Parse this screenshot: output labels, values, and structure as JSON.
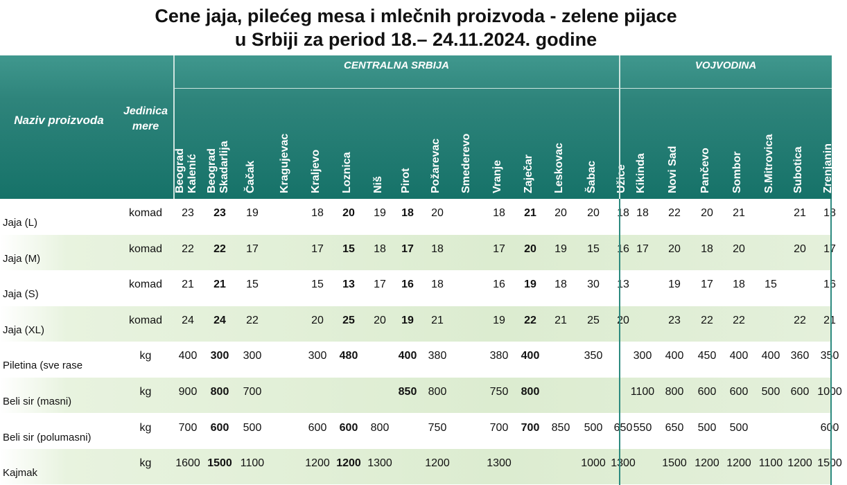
{
  "title_line1": "Cene jaja, pilećeg mesa i mlečnih proizvoda - zelene pijace",
  "title_line2": "u Srbiji za period 18.– 24.11.2024. godine",
  "header": {
    "name": "Naziv proizvoda",
    "unit_line1": "Jedinica",
    "unit_line2": "mere",
    "group_central": "CENTRALNA SRBIJA",
    "group_vojvodina": "VOJVODINA"
  },
  "cities": [
    {
      "lines": [
        "Beograd",
        "Kalenić"
      ]
    },
    {
      "lines": [
        "Beograd",
        "Skadarlija"
      ]
    },
    {
      "lines": [
        "Čačak"
      ]
    },
    {
      "lines": [
        "Kragujevac"
      ]
    },
    {
      "lines": [
        "Kraljevo"
      ]
    },
    {
      "lines": [
        "Loznica"
      ]
    },
    {
      "lines": [
        "Niš"
      ]
    },
    {
      "lines": [
        "Pirot"
      ]
    },
    {
      "lines": [
        "Požarevac"
      ]
    },
    {
      "lines": [
        "Smederevo"
      ]
    },
    {
      "lines": [
        "Vranje"
      ]
    },
    {
      "lines": [
        "Zaječar"
      ]
    },
    {
      "lines": [
        "Leskovac"
      ]
    },
    {
      "lines": [
        "Šabac"
      ]
    },
    {
      "lines": [
        "Užice"
      ]
    },
    {
      "lines": [
        "Kikinda"
      ]
    },
    {
      "lines": [
        "Novi Sad"
      ]
    },
    {
      "lines": [
        "Pančevo"
      ]
    },
    {
      "lines": [
        "Sombor"
      ]
    },
    {
      "lines": [
        "S.Mitrovica"
      ]
    },
    {
      "lines": [
        "Subotica"
      ]
    },
    {
      "lines": [
        "Zrenjanin"
      ]
    }
  ],
  "rows": [
    {
      "name": "Jaja (L)",
      "unit": "komad",
      "values": [
        "23",
        "23",
        "19",
        "",
        "18",
        "20",
        "19",
        "18",
        "20",
        "",
        "18",
        "21",
        "20",
        "20",
        "18",
        "18",
        "22",
        "20",
        "21",
        "",
        "21",
        "18"
      ]
    },
    {
      "name": "Jaja (M)",
      "unit": "komad",
      "values": [
        "22",
        "22",
        "17",
        "",
        "17",
        "15",
        "18",
        "17",
        "18",
        "",
        "17",
        "20",
        "19",
        "15",
        "16",
        "17",
        "20",
        "18",
        "20",
        "",
        "20",
        "17"
      ]
    },
    {
      "name": "Jaja (S)",
      "unit": "komad",
      "values": [
        "21",
        "21",
        "15",
        "",
        "15",
        "13",
        "17",
        "16",
        "18",
        "",
        "16",
        "19",
        "18",
        "30",
        "13",
        "",
        "19",
        "17",
        "18",
        "15",
        "",
        "16"
      ]
    },
    {
      "name": "Jaja (XL)",
      "unit": "komad",
      "values": [
        "24",
        "24",
        "22",
        "",
        "20",
        "25",
        "20",
        "19",
        "21",
        "",
        "19",
        "22",
        "21",
        "25",
        "20",
        "",
        "23",
        "22",
        "22",
        "",
        "22",
        "21"
      ]
    },
    {
      "name": "Piletina (sve rase",
      "unit": "kg",
      "values": [
        "400",
        "300",
        "300",
        "",
        "300",
        "480",
        "",
        "400",
        "380",
        "",
        "380",
        "400",
        "",
        "350",
        "",
        "300",
        "400",
        "450",
        "400",
        "400",
        "360",
        "350"
      ]
    },
    {
      "name": "Beli sir (masni)",
      "unit": "kg",
      "values": [
        "900",
        "800",
        "700",
        "",
        "",
        "",
        "",
        "850",
        "800",
        "",
        "750",
        "800",
        "",
        "",
        "",
        "1100",
        "800",
        "600",
        "600",
        "500",
        "600",
        "1000"
      ]
    },
    {
      "name": "Beli sir (polumasni)",
      "unit": "kg",
      "values": [
        "700",
        "600",
        "500",
        "",
        "600",
        "600",
        "800",
        "",
        "750",
        "",
        "700",
        "700",
        "850",
        "500",
        "650",
        "550",
        "650",
        "500",
        "500",
        "",
        "",
        "600"
      ]
    },
    {
      "name": "Kajmak",
      "unit": "kg",
      "values": [
        "1600",
        "1500",
        "1100",
        "",
        "1200",
        "1200",
        "1300",
        "",
        "1200",
        "",
        "1300",
        "",
        "",
        "1000",
        "1300",
        "",
        "1500",
        "1200",
        "1200",
        "1100",
        "1200",
        "1500"
      ]
    }
  ]
}
